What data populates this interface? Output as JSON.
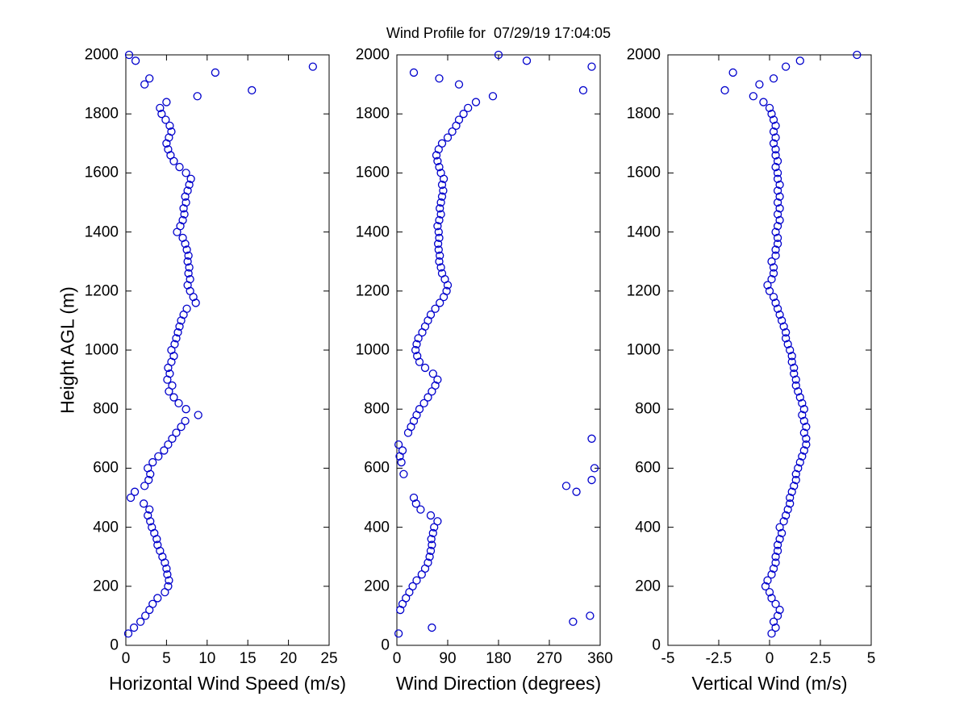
{
  "chart_data": {
    "type": "scatter",
    "title": "Wind Profile for  07/29/19 17:04:05",
    "ylabel": "Height AGL (m)",
    "ylim": [
      0,
      2000
    ],
    "yticks": [
      0,
      200,
      400,
      600,
      800,
      1000,
      1200,
      1400,
      1600,
      1800,
      2000
    ],
    "marker": "circle-open",
    "marker_color": "#0000CC",
    "grid": false,
    "legend": "none",
    "heights": [
      40,
      60,
      80,
      100,
      120,
      140,
      160,
      180,
      200,
      220,
      240,
      260,
      280,
      300,
      320,
      340,
      360,
      380,
      400,
      420,
      440,
      460,
      480,
      500,
      520,
      540,
      560,
      580,
      600,
      620,
      640,
      660,
      680,
      700,
      720,
      740,
      760,
      780,
      800,
      820,
      840,
      860,
      880,
      900,
      920,
      940,
      960,
      980,
      1000,
      1020,
      1040,
      1060,
      1080,
      1100,
      1120,
      1140,
      1160,
      1180,
      1200,
      1220,
      1240,
      1260,
      1280,
      1300,
      1320,
      1340,
      1360,
      1380,
      1400,
      1420,
      1440,
      1460,
      1480,
      1500,
      1520,
      1540,
      1560,
      1580,
      1600,
      1620,
      1640,
      1660,
      1680,
      1700,
      1720,
      1740,
      1760,
      1780,
      1800,
      1820,
      1840,
      1860,
      1880,
      1900,
      1920,
      1940,
      1960,
      1980,
      2000
    ],
    "panels": [
      {
        "xlabel": "Horizontal Wind Speed (m/s)",
        "xlim": [
          0,
          25
        ],
        "xticks": [
          0,
          5,
          10,
          15,
          20,
          25
        ],
        "values": [
          0.3,
          1.0,
          1.8,
          2.4,
          2.9,
          3.3,
          3.9,
          4.8,
          5.2,
          5.3,
          5.1,
          5.0,
          4.8,
          4.5,
          4.2,
          3.9,
          3.8,
          3.5,
          3.2,
          3.0,
          2.7,
          2.9,
          2.2,
          0.6,
          1.1,
          2.3,
          2.8,
          3.0,
          2.7,
          3.3,
          4.0,
          4.7,
          5.2,
          5.7,
          6.2,
          6.8,
          7.3,
          8.9,
          7.4,
          6.5,
          5.9,
          5.3,
          5.7,
          5.1,
          5.4,
          5.2,
          5.6,
          5.9,
          5.6,
          6.0,
          6.2,
          6.4,
          6.6,
          6.8,
          7.1,
          7.5,
          8.6,
          8.3,
          7.9,
          7.6,
          7.9,
          7.7,
          7.8,
          7.6,
          7.7,
          7.5,
          7.3,
          7.0,
          6.3,
          6.7,
          7.0,
          7.2,
          7.1,
          7.4,
          7.3,
          7.6,
          7.8,
          8.0,
          7.4,
          6.6,
          5.9,
          5.5,
          5.2,
          5.0,
          5.3,
          5.6,
          5.4,
          4.9,
          4.4,
          4.2,
          5.0,
          8.8,
          15.5,
          2.3,
          2.9,
          11.0,
          23.0,
          1.2,
          0.4
        ]
      },
      {
        "xlabel": "Wind Direction (degrees)",
        "xlim": [
          0,
          360
        ],
        "xticks": [
          0,
          90,
          180,
          270,
          360
        ],
        "values": [
          3,
          62,
          312,
          342,
          6,
          10,
          16,
          22,
          28,
          35,
          44,
          50,
          55,
          58,
          60,
          62,
          61,
          64,
          66,
          72,
          60,
          42,
          34,
          30,
          318,
          300,
          345,
          12,
          350,
          8,
          5,
          10,
          3,
          345,
          20,
          25,
          30,
          35,
          40,
          48,
          55,
          62,
          68,
          72,
          64,
          50,
          40,
          36,
          33,
          35,
          38,
          45,
          50,
          55,
          60,
          68,
          76,
          83,
          88,
          90,
          85,
          80,
          78,
          75,
          76,
          74,
          73,
          75,
          74,
          72,
          75,
          78,
          76,
          78,
          80,
          82,
          80,
          83,
          78,
          75,
          72,
          70,
          74,
          80,
          90,
          98,
          105,
          110,
          118,
          126,
          140,
          170,
          330,
          110,
          75,
          30,
          345,
          230,
          180
        ]
      },
      {
        "xlabel": "Vertical Wind (m/s)",
        "xlim": [
          -5,
          5
        ],
        "xticks": [
          -5,
          -2.5,
          0,
          2.5,
          5
        ],
        "values": [
          0.1,
          0.3,
          0.2,
          0.4,
          0.5,
          0.3,
          0.1,
          0.0,
          -0.2,
          -0.1,
          0.1,
          0.2,
          0.3,
          0.3,
          0.4,
          0.4,
          0.5,
          0.6,
          0.5,
          0.7,
          0.8,
          0.9,
          1.0,
          1.0,
          1.1,
          1.2,
          1.3,
          1.3,
          1.4,
          1.5,
          1.6,
          1.7,
          1.8,
          1.8,
          1.7,
          1.8,
          1.7,
          1.6,
          1.7,
          1.6,
          1.5,
          1.4,
          1.3,
          1.3,
          1.2,
          1.2,
          1.1,
          1.1,
          1.0,
          0.9,
          0.8,
          0.8,
          0.7,
          0.6,
          0.5,
          0.4,
          0.3,
          0.2,
          0.0,
          -0.1,
          0.1,
          0.2,
          0.2,
          0.1,
          0.3,
          0.3,
          0.4,
          0.4,
          0.3,
          0.4,
          0.5,
          0.4,
          0.5,
          0.4,
          0.5,
          0.4,
          0.5,
          0.4,
          0.4,
          0.3,
          0.4,
          0.3,
          0.3,
          0.2,
          0.3,
          0.2,
          0.3,
          0.2,
          0.1,
          0.0,
          -0.3,
          -0.8,
          -2.2,
          -0.5,
          0.2,
          -1.8,
          0.8,
          1.5,
          4.3
        ]
      }
    ]
  }
}
